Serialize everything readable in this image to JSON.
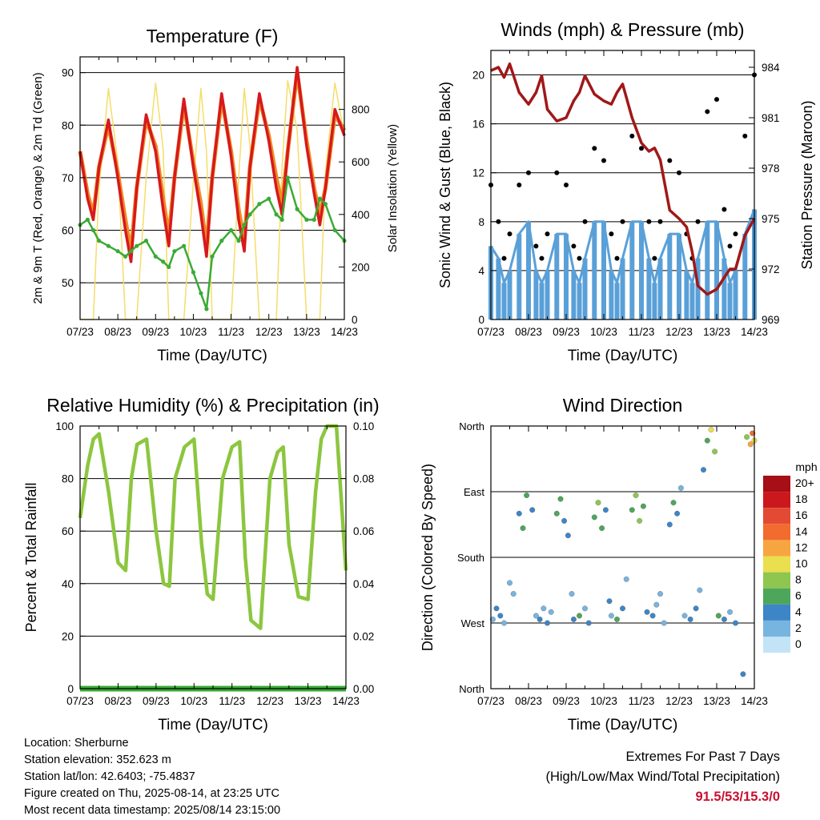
{
  "x_ticks": [
    "07/23",
    "08/23",
    "09/23",
    "10/23",
    "11/23",
    "12/23",
    "13/23",
    "14/23"
  ],
  "time_axis_label": "Time (Day/UTC)",
  "colors": {
    "temp_2m": "#d7191c",
    "temp_9m": "#f08a24",
    "dewpoint": "#3aaa35",
    "solar": "#f5dd6a",
    "wind": "#5aa0d8",
    "gust": "#000000",
    "pressure": "#a01818",
    "rh": "#8cc63f",
    "precip": "#3aaa35"
  },
  "panels": {
    "temperature": {
      "title": "Temperature (F)",
      "ylabel_left": "2m & 9m T (Red, Orange) & 2m Td (Green)",
      "ylabel_right": "Solar Insolation (Yellow)"
    },
    "winds": {
      "title": "Winds (mph) & Pressure (mb)",
      "ylabel_left": "Sonic Wind & Gust (Blue, Black)",
      "ylabel_right": "Station Pressure (Maroon)"
    },
    "humidity": {
      "title": "Relative Humidity (%) & Precipitation (in)",
      "ylabel_left": "Percent & Total Rainfall"
    },
    "direction": {
      "title": "Wind Direction",
      "ylabel_left": "Direction (Colored By Speed)",
      "colorbar_unit": "mph",
      "colorbar_labels": [
        "20+",
        "18",
        "16",
        "14",
        "12",
        "10",
        "8",
        "6",
        "4",
        "2",
        "0"
      ],
      "colorbar_colors": [
        "#a50f15",
        "#cb181d",
        "#e34a33",
        "#f26b2f",
        "#f7a541",
        "#eadf4f",
        "#8fc64f",
        "#4da65a",
        "#3d85c6",
        "#78b4e0",
        "#c2e4f6"
      ]
    }
  },
  "chart_data": [
    {
      "type": "line",
      "title": "Temperature (F)",
      "xlabel": "Time (Day/UTC)",
      "ylabel": "2m & 9m T (Red, Orange) & 2m Td (Green)",
      "ylabel_right": "Solar Insolation (Yellow)",
      "x": [
        0,
        0.2,
        0.35,
        0.5,
        0.75,
        1.0,
        1.2,
        1.35,
        1.5,
        1.75,
        2.0,
        2.2,
        2.35,
        2.5,
        2.75,
        3.0,
        3.2,
        3.35,
        3.5,
        3.75,
        4.0,
        4.2,
        4.35,
        4.5,
        4.75,
        5.0,
        5.2,
        5.35,
        5.5,
        5.75,
        6.0,
        6.2,
        6.35,
        6.5,
        6.75,
        7.0
      ],
      "ylim": [
        43,
        93
      ],
      "ylim_right": [
        0,
        1000
      ],
      "series": [
        {
          "name": "2m T",
          "axis": "left",
          "values": [
            75,
            66,
            62,
            72,
            81,
            70,
            60,
            54,
            68,
            82,
            75,
            64,
            57,
            70,
            85,
            72,
            63,
            55,
            70,
            86,
            74,
            62,
            56,
            72,
            86,
            77,
            68,
            63,
            75,
            91,
            76,
            67,
            61,
            68,
            83,
            78
          ]
        },
        {
          "name": "9m T",
          "axis": "left",
          "values": [
            75,
            67,
            63,
            72,
            80,
            71,
            62,
            56,
            68,
            81,
            76,
            66,
            59,
            70,
            84,
            73,
            65,
            57,
            70,
            85,
            75,
            64,
            58,
            72,
            85,
            78,
            70,
            65,
            75,
            90,
            77,
            68,
            63,
            68,
            82,
            79
          ]
        },
        {
          "name": "2m Td",
          "axis": "left",
          "values": [
            61,
            62,
            60,
            58,
            57,
            56,
            55,
            56,
            57,
            58,
            55,
            54,
            53,
            56,
            57,
            52,
            48,
            45,
            55,
            58,
            60,
            58,
            61,
            63,
            65,
            66,
            63,
            62,
            70,
            64,
            62,
            62,
            66,
            65,
            60,
            58
          ]
        },
        {
          "name": "Solar Insolation",
          "axis": "right",
          "values": [
            0,
            0,
            0,
            500,
            880,
            600,
            0,
            0,
            0,
            540,
            900,
            650,
            0,
            0,
            0,
            520,
            880,
            640,
            0,
            0,
            0,
            540,
            880,
            660,
            0,
            0,
            0,
            580,
            910,
            720,
            0,
            0,
            0,
            560,
            900,
            700
          ]
        }
      ]
    },
    {
      "type": "line",
      "title": "Winds (mph) & Pressure (mb)",
      "xlabel": "Time (Day/UTC)",
      "ylabel": "Sonic Wind & Gust (Blue, Black)",
      "ylabel_right": "Station Pressure (Maroon)",
      "x": [
        0,
        0.2,
        0.35,
        0.5,
        0.75,
        1.0,
        1.2,
        1.35,
        1.5,
        1.75,
        2.0,
        2.2,
        2.35,
        2.5,
        2.75,
        3.0,
        3.2,
        3.35,
        3.5,
        3.75,
        4.0,
        4.2,
        4.35,
        4.5,
        4.75,
        5.0,
        5.2,
        5.35,
        5.5,
        5.75,
        6.0,
        6.2,
        6.35,
        6.5,
        6.75,
        7.0
      ],
      "ylim": [
        0,
        22
      ],
      "ylim_right": [
        969,
        985
      ],
      "series": [
        {
          "name": "Sonic Wind",
          "axis": "left",
          "values": [
            6,
            5,
            3,
            4,
            7,
            8,
            4,
            3,
            4,
            7,
            7,
            4,
            3,
            5,
            8,
            8,
            4,
            3,
            5,
            8,
            8,
            5,
            3,
            5,
            7,
            7,
            4,
            3,
            5,
            8,
            8,
            5,
            3,
            4,
            7,
            9
          ]
        },
        {
          "name": "Gust",
          "axis": "left",
          "values": [
            11,
            8,
            5,
            7,
            11,
            12,
            6,
            5,
            7,
            12,
            11,
            6,
            5,
            8,
            14,
            13,
            7,
            5,
            8,
            15,
            14,
            8,
            5,
            8,
            13,
            12,
            7,
            5,
            8,
            17,
            18,
            9,
            6,
            7,
            15,
            20
          ]
        },
        {
          "name": "Station Pressure",
          "axis": "right",
          "values": [
            983.8,
            984,
            983.4,
            984.2,
            982.5,
            981.8,
            982.5,
            983.5,
            981.5,
            980.8,
            981,
            982,
            982.5,
            983.5,
            982.4,
            982,
            981.8,
            982.5,
            983,
            981,
            979.5,
            979,
            979.2,
            978.5,
            975.5,
            975,
            974.5,
            973,
            971,
            970.5,
            970.8,
            971.5,
            972,
            972,
            974,
            975
          ]
        }
      ]
    },
    {
      "type": "line",
      "title": "Relative Humidity (%) & Precipitation (in)",
      "xlabel": "Time (Day/UTC)",
      "ylabel": "Percent & Total Rainfall",
      "x": [
        0,
        0.2,
        0.35,
        0.5,
        0.75,
        1.0,
        1.2,
        1.35,
        1.5,
        1.75,
        2.0,
        2.2,
        2.35,
        2.5,
        2.75,
        3.0,
        3.2,
        3.35,
        3.5,
        3.75,
        4.0,
        4.2,
        4.35,
        4.5,
        4.75,
        5.0,
        5.2,
        5.35,
        5.5,
        5.75,
        6.0,
        6.2,
        6.35,
        6.5,
        6.75,
        7.0
      ],
      "ylim": [
        0,
        100
      ],
      "ylim_right": [
        0.0,
        0.1
      ],
      "series": [
        {
          "name": "Relative Humidity",
          "axis": "left",
          "values": [
            65,
            85,
            95,
            97,
            75,
            48,
            45,
            80,
            93,
            95,
            60,
            40,
            39,
            80,
            92,
            95,
            55,
            36,
            34,
            80,
            92,
            94,
            50,
            26,
            23,
            80,
            90,
            92,
            55,
            35,
            34,
            75,
            95,
            100,
            100,
            45
          ]
        },
        {
          "name": "Total Precipitation",
          "axis": "right",
          "values": [
            0,
            0,
            0,
            0,
            0,
            0,
            0,
            0,
            0,
            0,
            0,
            0,
            0,
            0,
            0,
            0,
            0,
            0,
            0,
            0,
            0,
            0,
            0,
            0,
            0,
            0,
            0,
            0,
            0,
            0,
            0,
            0,
            0,
            0,
            0,
            0
          ]
        }
      ]
    },
    {
      "type": "scatter",
      "title": "Wind Direction",
      "xlabel": "Time (Day/UTC)",
      "ylabel": "Direction (Colored By Speed)",
      "yticks": [
        "North",
        "East",
        "South",
        "West",
        "North"
      ],
      "ylim": [
        0,
        360
      ],
      "colorbar": {
        "unit": "mph",
        "levels": [
          0,
          2,
          4,
          6,
          8,
          10,
          12,
          14,
          16,
          18,
          20
        ]
      },
      "points": [
        [
          0.05,
          95,
          3
        ],
        [
          0.15,
          110,
          4
        ],
        [
          0.25,
          100,
          5
        ],
        [
          0.35,
          90,
          3
        ],
        [
          0.5,
          145,
          2
        ],
        [
          0.6,
          130,
          3
        ],
        [
          0.75,
          240,
          4
        ],
        [
          0.85,
          220,
          6
        ],
        [
          0.95,
          265,
          7
        ],
        [
          1.1,
          245,
          5
        ],
        [
          1.2,
          100,
          3
        ],
        [
          1.3,
          95,
          4
        ],
        [
          1.4,
          110,
          2
        ],
        [
          1.5,
          90,
          5
        ],
        [
          1.6,
          105,
          3
        ],
        [
          1.75,
          240,
          6
        ],
        [
          1.85,
          260,
          7
        ],
        [
          1.95,
          230,
          5
        ],
        [
          2.05,
          210,
          4
        ],
        [
          2.15,
          130,
          3
        ],
        [
          2.2,
          95,
          5
        ],
        [
          2.35,
          100,
          6
        ],
        [
          2.5,
          110,
          3
        ],
        [
          2.6,
          90,
          4
        ],
        [
          2.75,
          235,
          6
        ],
        [
          2.85,
          255,
          8
        ],
        [
          2.95,
          220,
          7
        ],
        [
          3.05,
          245,
          5
        ],
        [
          3.15,
          120,
          4
        ],
        [
          3.2,
          100,
          3
        ],
        [
          3.35,
          95,
          6
        ],
        [
          3.5,
          110,
          4
        ],
        [
          3.6,
          150,
          3
        ],
        [
          3.75,
          245,
          7
        ],
        [
          3.85,
          265,
          9
        ],
        [
          3.95,
          230,
          8
        ],
        [
          4.05,
          250,
          6
        ],
        [
          4.15,
          105,
          4
        ],
        [
          4.3,
          100,
          5
        ],
        [
          4.4,
          115,
          3
        ],
        [
          4.5,
          130,
          2
        ],
        [
          4.6,
          90,
          3
        ],
        [
          4.75,
          225,
          5
        ],
        [
          4.85,
          255,
          6
        ],
        [
          4.95,
          240,
          4
        ],
        [
          5.05,
          275,
          3
        ],
        [
          5.15,
          100,
          3
        ],
        [
          5.3,
          95,
          4
        ],
        [
          5.45,
          110,
          5
        ],
        [
          5.55,
          135,
          3
        ],
        [
          5.65,
          300,
          5
        ],
        [
          5.75,
          340,
          7
        ],
        [
          5.85,
          355,
          10
        ],
        [
          5.95,
          325,
          9
        ],
        [
          6.05,
          100,
          6
        ],
        [
          6.2,
          95,
          4
        ],
        [
          6.35,
          105,
          3
        ],
        [
          6.5,
          90,
          5
        ],
        [
          6.7,
          20,
          4
        ],
        [
          6.8,
          345,
          8
        ],
        [
          6.9,
          335,
          12
        ],
        [
          6.95,
          350,
          14
        ],
        [
          7.0,
          340,
          10
        ]
      ]
    }
  ],
  "footer": {
    "location": "Location: Sherburne",
    "elevation": "Station elevation: 352.623 m",
    "latlon": "Station lat/lon: 42.6403; -75.4837",
    "created": "Figure created on Thu, 2025-08-14, at 23:25 UTC",
    "recent": "Most recent data timestamp: 2025/08/14 23:15:00"
  },
  "extremes": {
    "line1": "Extremes For Past 7 Days",
    "line2": "(High/Low/Max Wind/Total Precipitation)",
    "value": "91.5/53/15.3/0"
  }
}
